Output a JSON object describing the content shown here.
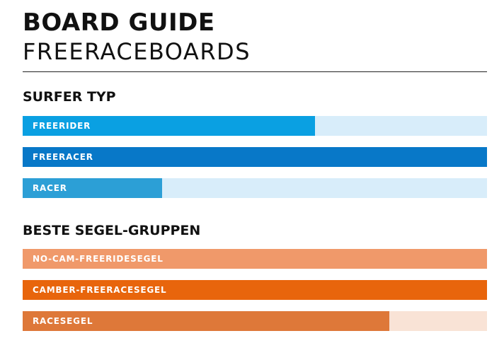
{
  "header": {
    "title": "BOARD GUIDE",
    "subtitle": "FREERACEBOARDS"
  },
  "chart_data": [
    {
      "type": "bar",
      "orientation": "horizontal",
      "title": "SURFER TYP",
      "max": 100,
      "bars": [
        {
          "label": "FREERIDER",
          "value": 63,
          "fill_color": "#0aa0e2",
          "track_color": "#d8edfa"
        },
        {
          "label": "FREERACER",
          "value": 100,
          "fill_color": "#0878c8",
          "track_color": "#d8edfa"
        },
        {
          "label": "RACER",
          "value": 30,
          "fill_color": "#2c9fd6",
          "track_color": "#d8edfa"
        }
      ]
    },
    {
      "type": "bar",
      "orientation": "horizontal",
      "title": "BESTE SEGEL-GRUPPEN",
      "max": 100,
      "bars": [
        {
          "label": "NO-CAM-FREERIDESEGEL",
          "value": 100,
          "fill_color": "#f0996a",
          "track_color": "#f9e3d6"
        },
        {
          "label": "CAMBER-FREERACESEGEL",
          "value": 100,
          "fill_color": "#e8650c",
          "track_color": "#f9e3d6"
        },
        {
          "label": "RACESEGEL",
          "value": 79,
          "fill_color": "#de7839",
          "track_color": "#f9e3d6"
        }
      ]
    }
  ]
}
